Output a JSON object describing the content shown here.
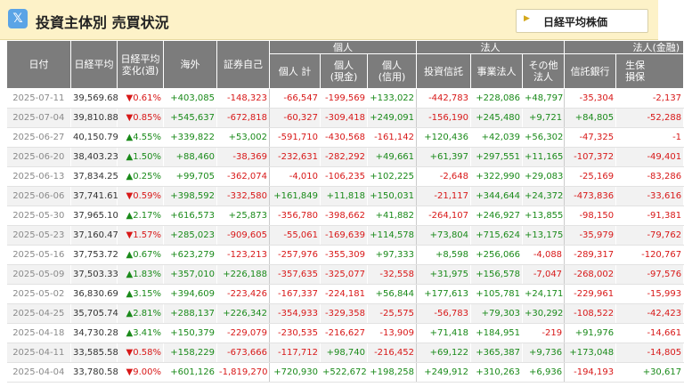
{
  "header": {
    "title": "投資主体別 売買状況",
    "link_button": "日経平均株価",
    "x_icon_glyph": "𝕏"
  },
  "table": {
    "group_headers": {
      "individual": "個人",
      "corporate": "法人",
      "financial": "法人(金融)"
    },
    "columns": {
      "date": "日付",
      "nikkei": "日経平均",
      "change": "日経平均変化(週)",
      "foreign": "海外",
      "proprietary": "証券自己",
      "ind_total": "個人 計",
      "ind_cash": "個人(現金)",
      "ind_credit": "個人(信用)",
      "inv_trust": "投資信託",
      "bus_corp": "事業法人",
      "other_corp": "その他法人",
      "trust_bank": "信託銀行",
      "life_ins": "生保損保"
    },
    "rows": [
      {
        "date": "2025-07-11",
        "nikkei": "39,569.68",
        "change": "▼0.61%",
        "foreign": "+403,085",
        "proprietary": "-148,323",
        "ind_total": "-66,547",
        "ind_cash": "-199,569",
        "ind_credit": "+133,022",
        "inv_trust": "-442,783",
        "bus_corp": "+228,086",
        "other_corp": "+48,797",
        "trust_bank": "-35,304",
        "life_ins": "-2,137"
      },
      {
        "date": "2025-07-04",
        "nikkei": "39,810.88",
        "change": "▼0.85%",
        "foreign": "+545,637",
        "proprietary": "-672,818",
        "ind_total": "-60,327",
        "ind_cash": "-309,418",
        "ind_credit": "+249,091",
        "inv_trust": "-156,190",
        "bus_corp": "+245,480",
        "other_corp": "+9,721",
        "trust_bank": "+84,805",
        "life_ins": "-52,288"
      },
      {
        "date": "2025-06-27",
        "nikkei": "40,150.79",
        "change": "▲4.55%",
        "foreign": "+339,822",
        "proprietary": "+53,002",
        "ind_total": "-591,710",
        "ind_cash": "-430,568",
        "ind_credit": "-161,142",
        "inv_trust": "+120,436",
        "bus_corp": "+42,039",
        "other_corp": "+56,302",
        "trust_bank": "-47,325",
        "life_ins": "-1"
      },
      {
        "date": "2025-06-20",
        "nikkei": "38,403.23",
        "change": "▲1.50%",
        "foreign": "+88,460",
        "proprietary": "-38,369",
        "ind_total": "-232,631",
        "ind_cash": "-282,292",
        "ind_credit": "+49,661",
        "inv_trust": "+61,397",
        "bus_corp": "+297,551",
        "other_corp": "+11,165",
        "trust_bank": "-107,372",
        "life_ins": "-49,401"
      },
      {
        "date": "2025-06-13",
        "nikkei": "37,834.25",
        "change": "▲0.25%",
        "foreign": "+99,705",
        "proprietary": "-362,074",
        "ind_total": "-4,010",
        "ind_cash": "-106,235",
        "ind_credit": "+102,225",
        "inv_trust": "-2,648",
        "bus_corp": "+322,990",
        "other_corp": "+29,083",
        "trust_bank": "-25,169",
        "life_ins": "-83,286"
      },
      {
        "date": "2025-06-06",
        "nikkei": "37,741.61",
        "change": "▼0.59%",
        "foreign": "+398,592",
        "proprietary": "-332,580",
        "ind_total": "+161,849",
        "ind_cash": "+11,818",
        "ind_credit": "+150,031",
        "inv_trust": "-21,117",
        "bus_corp": "+344,644",
        "other_corp": "+24,372",
        "trust_bank": "-473,836",
        "life_ins": "-33,616"
      },
      {
        "date": "2025-05-30",
        "nikkei": "37,965.10",
        "change": "▲2.17%",
        "foreign": "+616,573",
        "proprietary": "+25,873",
        "ind_total": "-356,780",
        "ind_cash": "-398,662",
        "ind_credit": "+41,882",
        "inv_trust": "-264,107",
        "bus_corp": "+246,927",
        "other_corp": "+13,855",
        "trust_bank": "-98,150",
        "life_ins": "-91,381"
      },
      {
        "date": "2025-05-23",
        "nikkei": "37,160.47",
        "change": "▼1.57%",
        "foreign": "+285,023",
        "proprietary": "-909,605",
        "ind_total": "-55,061",
        "ind_cash": "-169,639",
        "ind_credit": "+114,578",
        "inv_trust": "+73,804",
        "bus_corp": "+715,624",
        "other_corp": "+13,175",
        "trust_bank": "-35,979",
        "life_ins": "-79,762"
      },
      {
        "date": "2025-05-16",
        "nikkei": "37,753.72",
        "change": "▲0.67%",
        "foreign": "+623,279",
        "proprietary": "-123,213",
        "ind_total": "-257,976",
        "ind_cash": "-355,309",
        "ind_credit": "+97,333",
        "inv_trust": "+8,598",
        "bus_corp": "+256,066",
        "other_corp": "-4,088",
        "trust_bank": "-289,317",
        "life_ins": "-120,767"
      },
      {
        "date": "2025-05-09",
        "nikkei": "37,503.33",
        "change": "▲1.83%",
        "foreign": "+357,010",
        "proprietary": "+226,188",
        "ind_total": "-357,635",
        "ind_cash": "-325,077",
        "ind_credit": "-32,558",
        "inv_trust": "+31,975",
        "bus_corp": "+156,578",
        "other_corp": "-7,047",
        "trust_bank": "-268,002",
        "life_ins": "-97,576"
      },
      {
        "date": "2025-05-02",
        "nikkei": "36,830.69",
        "change": "▲3.15%",
        "foreign": "+394,609",
        "proprietary": "-223,426",
        "ind_total": "-167,337",
        "ind_cash": "-224,181",
        "ind_credit": "+56,844",
        "inv_trust": "+177,613",
        "bus_corp": "+105,781",
        "other_corp": "+24,171",
        "trust_bank": "-229,961",
        "life_ins": "-15,993"
      },
      {
        "date": "2025-04-25",
        "nikkei": "35,705.74",
        "change": "▲2.81%",
        "foreign": "+288,137",
        "proprietary": "+226,342",
        "ind_total": "-354,933",
        "ind_cash": "-329,358",
        "ind_credit": "-25,575",
        "inv_trust": "-56,783",
        "bus_corp": "+79,303",
        "other_corp": "+30,292",
        "trust_bank": "-108,522",
        "life_ins": "-42,423"
      },
      {
        "date": "2025-04-18",
        "nikkei": "34,730.28",
        "change": "▲3.41%",
        "foreign": "+150,379",
        "proprietary": "-229,079",
        "ind_total": "-230,535",
        "ind_cash": "-216,627",
        "ind_credit": "-13,909",
        "inv_trust": "+71,418",
        "bus_corp": "+184,951",
        "other_corp": "-219",
        "trust_bank": "+91,976",
        "life_ins": "-14,661"
      },
      {
        "date": "2025-04-11",
        "nikkei": "33,585.58",
        "change": "▼0.58%",
        "foreign": "+158,229",
        "proprietary": "-673,666",
        "ind_total": "-117,712",
        "ind_cash": "+98,740",
        "ind_credit": "-216,452",
        "inv_trust": "+69,122",
        "bus_corp": "+365,387",
        "other_corp": "+9,736",
        "trust_bank": "+173,048",
        "life_ins": "-14,805"
      },
      {
        "date": "2025-04-04",
        "nikkei": "33,780.58",
        "change": "▼9.00%",
        "foreign": "+601,126",
        "proprietary": "-1,819,270",
        "ind_total": "+720,930",
        "ind_cash": "+522,672",
        "ind_credit": "+198,258",
        "inv_trust": "+249,912",
        "bus_corp": "+310,263",
        "other_corp": "+6,936",
        "trust_bank": "-194,193",
        "life_ins": "+30,617"
      }
    ]
  }
}
